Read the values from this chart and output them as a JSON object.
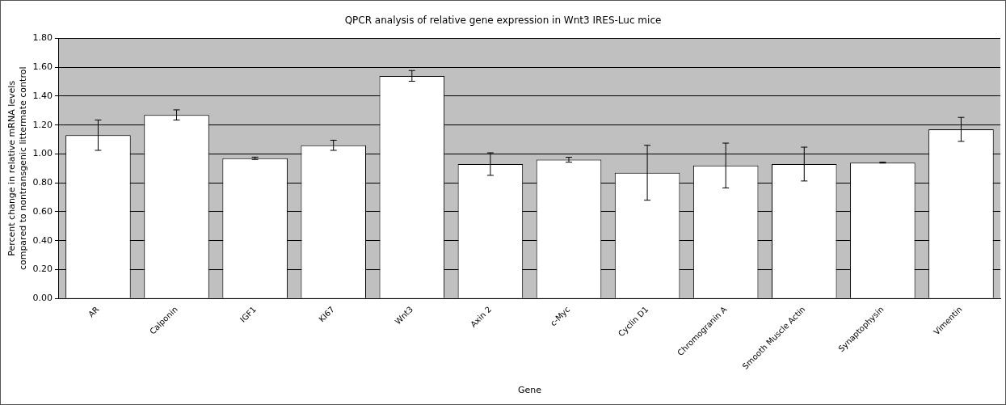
{
  "chart_data": {
    "type": "bar",
    "title": "QPCR analysis of relative gene expression in Wnt3 IRES-Luc mice",
    "xlabel": "Gene",
    "ylabel": "Percent change in relative mRNA levels\ncompared to nontransgenic littermate control",
    "categories": [
      "AR",
      "Calponin",
      "IGF1",
      "KI67",
      "Wnt3",
      "Axin 2",
      "c-Myc",
      "Cyclin D1",
      "Chromogranin A",
      "Smooth Muscle Actin",
      "Synaptophysin",
      "Vimentin"
    ],
    "values": [
      1.13,
      1.27,
      0.97,
      1.06,
      1.54,
      0.93,
      0.96,
      0.87,
      0.92,
      0.93,
      0.94,
      1.17
    ],
    "errors": [
      0.105,
      0.035,
      0.008,
      0.035,
      0.037,
      0.078,
      0.017,
      0.19,
      0.155,
      0.117,
      0.003,
      0.083
    ],
    "color": "#ffffff",
    "ylim": [
      0,
      1.8
    ],
    "yticks": [
      {
        "value": 0,
        "label": "0.00"
      },
      {
        "value": 0.2,
        "label": "0.20"
      },
      {
        "value": 0.4,
        "label": "0.40"
      },
      {
        "value": 0.6,
        "label": "0.60"
      },
      {
        "value": 0.8,
        "label": "0.80"
      },
      {
        "value": 1,
        "label": "1.00"
      },
      {
        "value": 1.2,
        "label": "1.20"
      },
      {
        "value": 1.4,
        "label": "1.40"
      },
      {
        "value": 1.6,
        "label": "1.60"
      },
      {
        "value": 1.8,
        "label": "1.80"
      }
    ],
    "grid": "y",
    "legend": false
  }
}
